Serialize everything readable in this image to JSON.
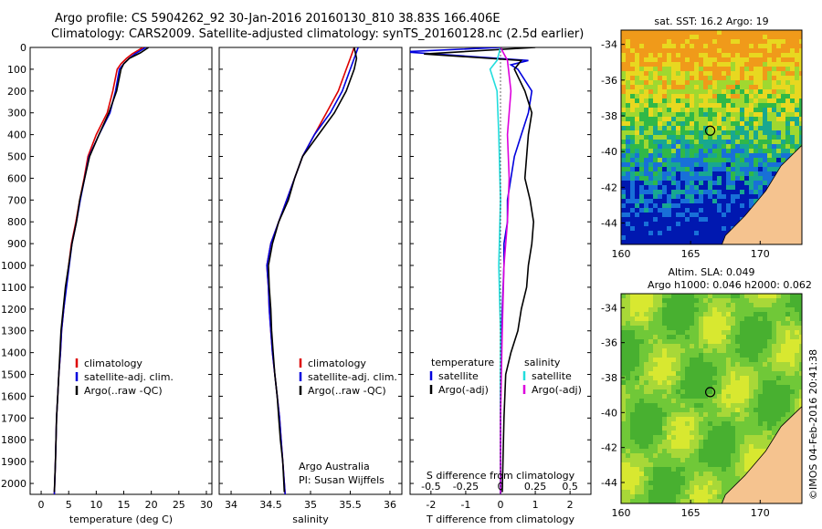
{
  "header": {
    "title_line1": "Argo profile: CS 5904262_92 30-Jan-2016 20160130_810 38.83S 166.406E",
    "title_line2": "Climatology: CARS2009. Satellite-adjusted climatology: synTS_20160128.nc (2.5d earlier)"
  },
  "stamp": "©IMOS 04-Feb-2016 20:41:38",
  "colors": {
    "climatology": "#dd0000",
    "satellite": "#0000dd",
    "argo": "#000000",
    "sal_satellite": "#22dddd",
    "sal_argo": "#dd00dd",
    "land": "#f5c38f"
  },
  "chart_data": [
    {
      "type": "line",
      "id": "temperature",
      "xlabel": "temperature (deg C)",
      "xticks": [
        0,
        5,
        10,
        15,
        20,
        25,
        30
      ],
      "xlim": [
        -2,
        31
      ],
      "ylim": [
        0,
        2050
      ],
      "yticks": [
        0,
        100,
        200,
        300,
        400,
        500,
        600,
        700,
        800,
        900,
        1000,
        1100,
        1200,
        1300,
        1400,
        1500,
        1600,
        1700,
        1800,
        1900,
        2000
      ],
      "legend": [
        "climatology",
        "satellite-adj. clim.",
        "Argo(..raw -QC)"
      ],
      "series": [
        {
          "name": "climatology",
          "points": [
            [
              18.5,
              0
            ],
            [
              16.5,
              30
            ],
            [
              15.5,
              50
            ],
            [
              14.5,
              75
            ],
            [
              13.8,
              100
            ],
            [
              13,
              200
            ],
            [
              12,
              300
            ],
            [
              10,
              400
            ],
            [
              8.5,
              500
            ],
            [
              7.8,
              600
            ],
            [
              7,
              700
            ],
            [
              6.3,
              800
            ],
            [
              5.5,
              900
            ],
            [
              5,
              1000
            ],
            [
              4.5,
              1100
            ],
            [
              4.1,
              1200
            ],
            [
              3.7,
              1300
            ],
            [
              3.5,
              1400
            ],
            [
              3.2,
              1500
            ],
            [
              3,
              1600
            ],
            [
              2.8,
              1700
            ],
            [
              2.7,
              1800
            ],
            [
              2.6,
              1900
            ],
            [
              2.4,
              2050
            ]
          ]
        },
        {
          "name": "satellite-adj. clim.",
          "points": [
            [
              19,
              0
            ],
            [
              17,
              30
            ],
            [
              16,
              50
            ],
            [
              15,
              75
            ],
            [
              14.2,
              100
            ],
            [
              13.5,
              200
            ],
            [
              12.5,
              300
            ],
            [
              10.5,
              400
            ],
            [
              8.7,
              500
            ],
            [
              7.9,
              600
            ],
            [
              7.1,
              700
            ],
            [
              6.4,
              800
            ],
            [
              5.6,
              900
            ],
            [
              5.1,
              1000
            ],
            [
              4.6,
              1100
            ],
            [
              4.1,
              1200
            ],
            [
              3.7,
              1300
            ],
            [
              3.5,
              1400
            ],
            [
              3.2,
              1500
            ],
            [
              3,
              1600
            ],
            [
              2.8,
              1700
            ],
            [
              2.7,
              1800
            ],
            [
              2.6,
              1900
            ],
            [
              2.4,
              2050
            ]
          ]
        },
        {
          "name": "Argo(..raw -QC)",
          "points": [
            [
              19.5,
              0
            ],
            [
              18,
              25
            ],
            [
              16,
              50
            ],
            [
              15,
              75
            ],
            [
              14.5,
              100
            ],
            [
              13.7,
              200
            ],
            [
              12.3,
              300
            ],
            [
              10.5,
              400
            ],
            [
              8.8,
              500
            ],
            [
              7.9,
              600
            ],
            [
              7,
              700
            ],
            [
              6.4,
              800
            ],
            [
              5.6,
              900
            ],
            [
              5,
              1000
            ],
            [
              4.4,
              1100
            ],
            [
              4,
              1200
            ],
            [
              3.6,
              1300
            ],
            [
              3.4,
              1400
            ],
            [
              3.2,
              1500
            ],
            [
              3,
              1600
            ],
            [
              2.8,
              1700
            ],
            [
              2.7,
              1800
            ],
            [
              2.6,
              1900
            ],
            [
              2.4,
              2040
            ]
          ]
        }
      ]
    },
    {
      "type": "line",
      "id": "salinity",
      "xlabel": "salinity",
      "xticks": [
        34,
        34.5,
        35,
        35.5,
        36
      ],
      "xlim": [
        33.85,
        36.15
      ],
      "ylim": [
        0,
        2050
      ],
      "legend": [
        "climatology",
        "satellite-adj. clim.",
        "Argo(..raw -QC)"
      ],
      "annotation": [
        "Argo Australia",
        "PI: Susan Wijffels"
      ],
      "series": [
        {
          "name": "climatology",
          "points": [
            [
              35.55,
              0
            ],
            [
              35.5,
              50
            ],
            [
              35.45,
              100
            ],
            [
              35.35,
              200
            ],
            [
              35.2,
              300
            ],
            [
              35.05,
              400
            ],
            [
              34.9,
              500
            ],
            [
              34.8,
              600
            ],
            [
              34.7,
              700
            ],
            [
              34.6,
              800
            ],
            [
              34.5,
              900
            ],
            [
              34.45,
              1000
            ],
            [
              34.47,
              1100
            ],
            [
              34.48,
              1200
            ],
            [
              34.5,
              1300
            ],
            [
              34.52,
              1400
            ],
            [
              34.55,
              1500
            ],
            [
              34.58,
              1600
            ],
            [
              34.61,
              1700
            ],
            [
              34.63,
              1800
            ],
            [
              34.65,
              1900
            ],
            [
              34.68,
              2050
            ]
          ]
        },
        {
          "name": "satellite-adj. clim.",
          "points": [
            [
              35.6,
              0
            ],
            [
              35.55,
              50
            ],
            [
              35.5,
              100
            ],
            [
              35.4,
              200
            ],
            [
              35.25,
              300
            ],
            [
              35.05,
              400
            ],
            [
              34.9,
              500
            ],
            [
              34.8,
              600
            ],
            [
              34.7,
              700
            ],
            [
              34.6,
              800
            ],
            [
              34.5,
              900
            ],
            [
              34.45,
              1000
            ],
            [
              34.47,
              1100
            ],
            [
              34.48,
              1200
            ],
            [
              34.5,
              1300
            ],
            [
              34.52,
              1400
            ],
            [
              34.55,
              1500
            ],
            [
              34.58,
              1600
            ],
            [
              34.61,
              1700
            ],
            [
              34.63,
              1800
            ],
            [
              34.65,
              1900
            ],
            [
              34.68,
              2050
            ]
          ]
        },
        {
          "name": "Argo(..raw -QC)",
          "points": [
            [
              35.55,
              0
            ],
            [
              35.58,
              50
            ],
            [
              35.55,
              100
            ],
            [
              35.45,
              200
            ],
            [
              35.3,
              300
            ],
            [
              35.1,
              400
            ],
            [
              34.9,
              500
            ],
            [
              34.8,
              600
            ],
            [
              34.72,
              700
            ],
            [
              34.6,
              800
            ],
            [
              34.52,
              900
            ],
            [
              34.47,
              1000
            ],
            [
              34.48,
              1100
            ],
            [
              34.5,
              1200
            ],
            [
              34.51,
              1300
            ],
            [
              34.53,
              1400
            ],
            [
              34.55,
              1500
            ],
            [
              34.58,
              1600
            ],
            [
              34.6,
              1700
            ],
            [
              34.62,
              1800
            ],
            [
              34.65,
              1900
            ],
            [
              34.67,
              2040
            ]
          ]
        }
      ]
    },
    {
      "type": "line",
      "id": "difference",
      "xlabel": "T difference from climatology",
      "xticks": [
        -2,
        -1,
        0,
        1,
        2
      ],
      "xlim": [
        -2.6,
        2.6
      ],
      "xlabel_top": "S difference from climatology",
      "xticks_top": [
        "-0.5",
        "-0.25",
        "0",
        "0.25",
        "0.5"
      ],
      "ylim": [
        0,
        2050
      ],
      "legend_temperature": [
        "temperature",
        "satellite",
        "Argo(-adj)"
      ],
      "legend_salinity": [
        "salinity",
        "satellite",
        "Argo(-adj)"
      ],
      "series": [
        {
          "name": "satellite",
          "points": [
            [
              0,
              0
            ],
            [
              -2.8,
              20
            ],
            [
              0.8,
              60
            ],
            [
              0.3,
              80
            ],
            [
              0.5,
              100
            ],
            [
              0.9,
              200
            ],
            [
              0.8,
              300
            ],
            [
              0.6,
              400
            ],
            [
              0.4,
              500
            ],
            [
              0.3,
              600
            ],
            [
              0.2,
              700
            ],
            [
              0.2,
              800
            ],
            [
              0.1,
              900
            ],
            [
              0.1,
              1000
            ],
            [
              0.05,
              1200
            ],
            [
              0,
              1500
            ],
            [
              0,
              2050
            ]
          ]
        },
        {
          "name": "Argo(-adj)",
          "points": [
            [
              1,
              0
            ],
            [
              -2.2,
              30
            ],
            [
              0.6,
              60
            ],
            [
              0.4,
              100
            ],
            [
              0.7,
              200
            ],
            [
              0.9,
              300
            ],
            [
              0.8,
              400
            ],
            [
              0.75,
              500
            ],
            [
              0.7,
              600
            ],
            [
              0.85,
              700
            ],
            [
              0.95,
              800
            ],
            [
              0.9,
              900
            ],
            [
              0.8,
              1000
            ],
            [
              0.75,
              1100
            ],
            [
              0.6,
              1200
            ],
            [
              0.5,
              1300
            ],
            [
              0.3,
              1400
            ],
            [
              0.15,
              1500
            ],
            [
              0.1,
              1700
            ],
            [
              0.05,
              2040
            ]
          ]
        },
        {
          "name": "S satellite",
          "points": [
            [
              0,
              0
            ],
            [
              -0.1,
              60
            ],
            [
              -0.3,
              100
            ],
            [
              -0.1,
              200
            ],
            [
              -0.05,
              400
            ],
            [
              0,
              700
            ],
            [
              -0.05,
              1000
            ],
            [
              0,
              1300
            ],
            [
              0,
              2050
            ]
          ]
        },
        {
          "name": "S Argo(-adj)",
          "points": [
            [
              0,
              0
            ],
            [
              0.2,
              60
            ],
            [
              0.3,
              200
            ],
            [
              0.2,
              400
            ],
            [
              0.25,
              600
            ],
            [
              0.2,
              800
            ],
            [
              0.1,
              1000
            ],
            [
              0.05,
              1300
            ],
            [
              0,
              1700
            ],
            [
              0,
              2050
            ]
          ]
        }
      ]
    },
    {
      "type": "heatmap",
      "id": "sst_map",
      "title": "sat. SST: 16.2 Argo: 19",
      "xticks": [
        160,
        165,
        170
      ],
      "yticks": [
        -34,
        -36,
        -38,
        -40,
        -42,
        -44
      ],
      "xlim": [
        160,
        173
      ],
      "ylim": [
        -45.2,
        -33.2
      ],
      "marker": [
        166.406,
        -38.83
      ]
    },
    {
      "type": "heatmap",
      "id": "sla_map",
      "title_line1": "Altim. SLA: 0.049",
      "title_line2": "Argo h1000: 0.046 h2000: 0.062",
      "xticks": [
        160,
        165,
        170
      ],
      "yticks": [
        -34,
        -36,
        -38,
        -40,
        -42,
        -44
      ],
      "xlim": [
        160,
        173
      ],
      "ylim": [
        -45.2,
        -33.2
      ],
      "marker": [
        166.406,
        -38.83
      ]
    }
  ]
}
